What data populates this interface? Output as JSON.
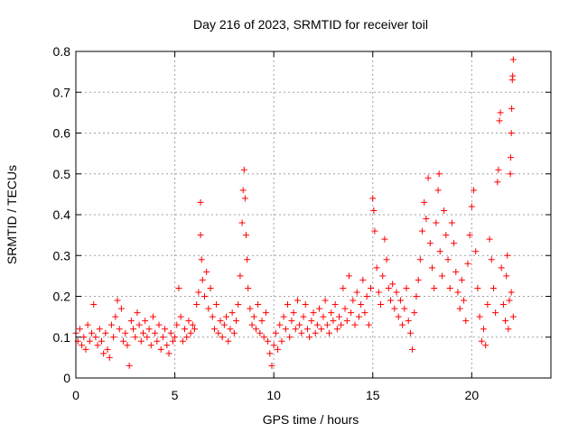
{
  "chart_data": {
    "type": "scatter",
    "title": "Day 216 of 2023, SRMTID for receiver toil",
    "xlabel": "GPS time / hours",
    "ylabel": "SRMTID / TECUs",
    "xlim": [
      0,
      24
    ],
    "ylim": [
      0,
      0.8
    ],
    "xticks": [
      0,
      5,
      10,
      15,
      20
    ],
    "yticks": [
      0,
      0.1,
      0.2,
      0.3,
      0.4,
      0.5,
      0.6,
      0.7,
      0.8
    ],
    "grid": true,
    "marker": "+",
    "color": "#ff0000",
    "series": [
      {
        "name": "SRMTID",
        "points": [
          [
            0.0,
            0.11
          ],
          [
            0.1,
            0.09
          ],
          [
            0.2,
            0.12
          ],
          [
            0.3,
            0.08
          ],
          [
            0.4,
            0.1
          ],
          [
            0.5,
            0.07
          ],
          [
            0.6,
            0.13
          ],
          [
            0.7,
            0.09
          ],
          [
            0.8,
            0.11
          ],
          [
            0.9,
            0.18
          ],
          [
            1.0,
            0.1
          ],
          [
            1.1,
            0.08
          ],
          [
            1.2,
            0.12
          ],
          [
            1.3,
            0.09
          ],
          [
            1.4,
            0.06
          ],
          [
            1.5,
            0.11
          ],
          [
            1.6,
            0.07
          ],
          [
            1.7,
            0.05
          ],
          [
            1.8,
            0.13
          ],
          [
            1.9,
            0.1
          ],
          [
            2.0,
            0.15
          ],
          [
            2.1,
            0.19
          ],
          [
            2.2,
            0.12
          ],
          [
            2.3,
            0.17
          ],
          [
            2.4,
            0.09
          ],
          [
            2.5,
            0.11
          ],
          [
            2.6,
            0.08
          ],
          [
            2.7,
            0.03
          ],
          [
            2.8,
            0.14
          ],
          [
            2.9,
            0.12
          ],
          [
            3.0,
            0.1
          ],
          [
            3.1,
            0.16
          ],
          [
            3.2,
            0.13
          ],
          [
            3.3,
            0.09
          ],
          [
            3.4,
            0.11
          ],
          [
            3.5,
            0.14
          ],
          [
            3.6,
            0.1
          ],
          [
            3.7,
            0.12
          ],
          [
            3.8,
            0.08
          ],
          [
            3.9,
            0.15
          ],
          [
            4.0,
            0.11
          ],
          [
            4.1,
            0.09
          ],
          [
            4.2,
            0.13
          ],
          [
            4.3,
            0.07
          ],
          [
            4.4,
            0.1
          ],
          [
            4.5,
            0.12
          ],
          [
            4.6,
            0.08
          ],
          [
            4.7,
            0.06
          ],
          [
            4.8,
            0.11
          ],
          [
            4.9,
            0.09
          ],
          [
            5.0,
            0.1
          ],
          [
            5.1,
            0.13
          ],
          [
            5.2,
            0.22
          ],
          [
            5.3,
            0.15
          ],
          [
            5.4,
            0.09
          ],
          [
            5.5,
            0.12
          ],
          [
            5.6,
            0.1
          ],
          [
            5.7,
            0.14
          ],
          [
            5.8,
            0.11
          ],
          [
            5.9,
            0.13
          ],
          [
            6.0,
            0.12
          ],
          [
            6.1,
            0.18
          ],
          [
            6.2,
            0.21
          ],
          [
            6.3,
            0.43
          ],
          [
            6.3,
            0.35
          ],
          [
            6.35,
            0.29
          ],
          [
            6.4,
            0.24
          ],
          [
            6.5,
            0.2
          ],
          [
            6.6,
            0.26
          ],
          [
            6.7,
            0.17
          ],
          [
            6.8,
            0.22
          ],
          [
            6.9,
            0.15
          ],
          [
            7.0,
            0.12
          ],
          [
            7.1,
            0.18
          ],
          [
            7.2,
            0.11
          ],
          [
            7.3,
            0.14
          ],
          [
            7.4,
            0.1
          ],
          [
            7.5,
            0.13
          ],
          [
            7.6,
            0.15
          ],
          [
            7.7,
            0.09
          ],
          [
            7.8,
            0.12
          ],
          [
            7.9,
            0.16
          ],
          [
            8.0,
            0.11
          ],
          [
            8.1,
            0.14
          ],
          [
            8.2,
            0.18
          ],
          [
            8.3,
            0.25
          ],
          [
            8.4,
            0.38
          ],
          [
            8.45,
            0.46
          ],
          [
            8.5,
            0.51
          ],
          [
            8.55,
            0.44
          ],
          [
            8.6,
            0.35
          ],
          [
            8.65,
            0.29
          ],
          [
            8.7,
            0.22
          ],
          [
            8.8,
            0.17
          ],
          [
            8.9,
            0.13
          ],
          [
            9.0,
            0.15
          ],
          [
            9.1,
            0.12
          ],
          [
            9.2,
            0.18
          ],
          [
            9.3,
            0.11
          ],
          [
            9.4,
            0.14
          ],
          [
            9.5,
            0.1
          ],
          [
            9.6,
            0.16
          ],
          [
            9.7,
            0.09
          ],
          [
            9.8,
            0.06
          ],
          [
            9.9,
            0.03
          ],
          [
            10.0,
            0.08
          ],
          [
            10.1,
            0.11
          ],
          [
            10.2,
            0.07
          ],
          [
            10.3,
            0.13
          ],
          [
            10.4,
            0.09
          ],
          [
            10.5,
            0.15
          ],
          [
            10.6,
            0.12
          ],
          [
            10.7,
            0.18
          ],
          [
            10.8,
            0.1
          ],
          [
            10.9,
            0.14
          ],
          [
            11.0,
            0.16
          ],
          [
            11.1,
            0.12
          ],
          [
            11.2,
            0.19
          ],
          [
            11.3,
            0.13
          ],
          [
            11.4,
            0.11
          ],
          [
            11.5,
            0.15
          ],
          [
            11.6,
            0.18
          ],
          [
            11.7,
            0.12
          ],
          [
            11.8,
            0.1
          ],
          [
            11.9,
            0.14
          ],
          [
            12.0,
            0.16
          ],
          [
            12.1,
            0.11
          ],
          [
            12.2,
            0.13
          ],
          [
            12.3,
            0.17
          ],
          [
            12.4,
            0.12
          ],
          [
            12.5,
            0.15
          ],
          [
            12.6,
            0.19
          ],
          [
            12.7,
            0.13
          ],
          [
            12.8,
            0.11
          ],
          [
            12.9,
            0.16
          ],
          [
            13.0,
            0.14
          ],
          [
            13.1,
            0.18
          ],
          [
            13.2,
            0.12
          ],
          [
            13.3,
            0.15
          ],
          [
            13.4,
            0.13
          ],
          [
            13.5,
            0.22
          ],
          [
            13.6,
            0.17
          ],
          [
            13.7,
            0.14
          ],
          [
            13.8,
            0.25
          ],
          [
            13.9,
            0.16
          ],
          [
            14.0,
            0.19
          ],
          [
            14.1,
            0.13
          ],
          [
            14.2,
            0.21
          ],
          [
            14.3,
            0.15
          ],
          [
            14.4,
            0.18
          ],
          [
            14.5,
            0.24
          ],
          [
            14.6,
            0.16
          ],
          [
            14.7,
            0.2
          ],
          [
            14.8,
            0.13
          ],
          [
            14.9,
            0.22
          ],
          [
            15.0,
            0.44
          ],
          [
            15.05,
            0.41
          ],
          [
            15.1,
            0.36
          ],
          [
            15.2,
            0.27
          ],
          [
            15.3,
            0.21
          ],
          [
            15.4,
            0.18
          ],
          [
            15.5,
            0.25
          ],
          [
            15.6,
            0.34
          ],
          [
            15.7,
            0.29
          ],
          [
            15.8,
            0.22
          ],
          [
            15.9,
            0.19
          ],
          [
            16.0,
            0.23
          ],
          [
            16.1,
            0.17
          ],
          [
            16.2,
            0.21
          ],
          [
            16.3,
            0.15
          ],
          [
            16.4,
            0.19
          ],
          [
            16.5,
            0.13
          ],
          [
            16.6,
            0.17
          ],
          [
            16.7,
            0.22
          ],
          [
            16.8,
            0.14
          ],
          [
            16.9,
            0.11
          ],
          [
            17.0,
            0.07
          ],
          [
            17.1,
            0.16
          ],
          [
            17.2,
            0.2
          ],
          [
            17.3,
            0.24
          ],
          [
            17.4,
            0.29
          ],
          [
            17.5,
            0.36
          ],
          [
            17.6,
            0.43
          ],
          [
            17.7,
            0.39
          ],
          [
            17.8,
            0.49
          ],
          [
            17.9,
            0.33
          ],
          [
            18.0,
            0.27
          ],
          [
            18.1,
            0.22
          ],
          [
            18.2,
            0.38
          ],
          [
            18.3,
            0.46
          ],
          [
            18.35,
            0.5
          ],
          [
            18.4,
            0.31
          ],
          [
            18.5,
            0.25
          ],
          [
            18.6,
            0.41
          ],
          [
            18.7,
            0.35
          ],
          [
            18.8,
            0.29
          ],
          [
            18.9,
            0.22
          ],
          [
            19.0,
            0.38
          ],
          [
            19.1,
            0.33
          ],
          [
            19.2,
            0.26
          ],
          [
            19.3,
            0.21
          ],
          [
            19.4,
            0.17
          ],
          [
            19.5,
            0.24
          ],
          [
            19.6,
            0.19
          ],
          [
            19.7,
            0.14
          ],
          [
            19.8,
            0.28
          ],
          [
            19.9,
            0.35
          ],
          [
            20.0,
            0.42
          ],
          [
            20.1,
            0.46
          ],
          [
            20.2,
            0.31
          ],
          [
            20.3,
            0.22
          ],
          [
            20.4,
            0.15
          ],
          [
            20.5,
            0.09
          ],
          [
            20.6,
            0.12
          ],
          [
            20.7,
            0.08
          ],
          [
            20.8,
            0.18
          ],
          [
            20.9,
            0.34
          ],
          [
            21.0,
            0.29
          ],
          [
            21.1,
            0.22
          ],
          [
            21.2,
            0.16
          ],
          [
            21.3,
            0.48
          ],
          [
            21.35,
            0.51
          ],
          [
            21.4,
            0.63
          ],
          [
            21.45,
            0.65
          ],
          [
            21.5,
            0.27
          ],
          [
            21.6,
            0.18
          ],
          [
            21.7,
            0.14
          ],
          [
            21.8,
            0.3
          ],
          [
            21.9,
            0.19
          ],
          [
            21.95,
            0.5
          ],
          [
            21.97,
            0.54
          ],
          [
            22.0,
            0.6
          ],
          [
            22.02,
            0.66
          ],
          [
            22.05,
            0.73
          ],
          [
            22.07,
            0.74
          ],
          [
            22.1,
            0.78
          ],
          [
            22.1,
            0.15
          ],
          [
            22.0,
            0.21
          ],
          [
            21.85,
            0.12
          ],
          [
            21.75,
            0.25
          ]
        ]
      }
    ]
  }
}
